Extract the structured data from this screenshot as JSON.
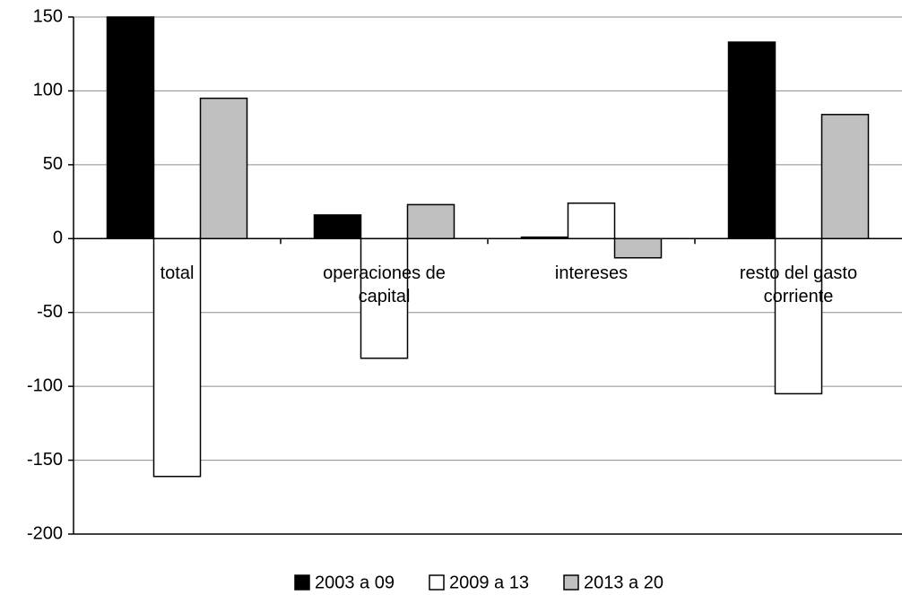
{
  "chart_data": {
    "type": "bar",
    "categories": [
      "total",
      "operaciones de capital",
      "intereses",
      "resto del gasto corriente"
    ],
    "series": [
      {
        "name": "2003 a 09",
        "color": "#000000",
        "values": [
          150,
          16,
          1,
          133
        ]
      },
      {
        "name": "2009 a 13",
        "color": "#ffffff",
        "values": [
          -161,
          -81,
          24,
          -105
        ]
      },
      {
        "name": "2013 a 20",
        "color": "#c0c0c0",
        "values": [
          95,
          23,
          -13,
          84
        ]
      }
    ],
    "ylim": [
      -200,
      150
    ],
    "yticks": [
      -200,
      -150,
      -100,
      -50,
      0,
      50,
      100,
      150
    ],
    "grid": true,
    "legend": "bottom"
  }
}
